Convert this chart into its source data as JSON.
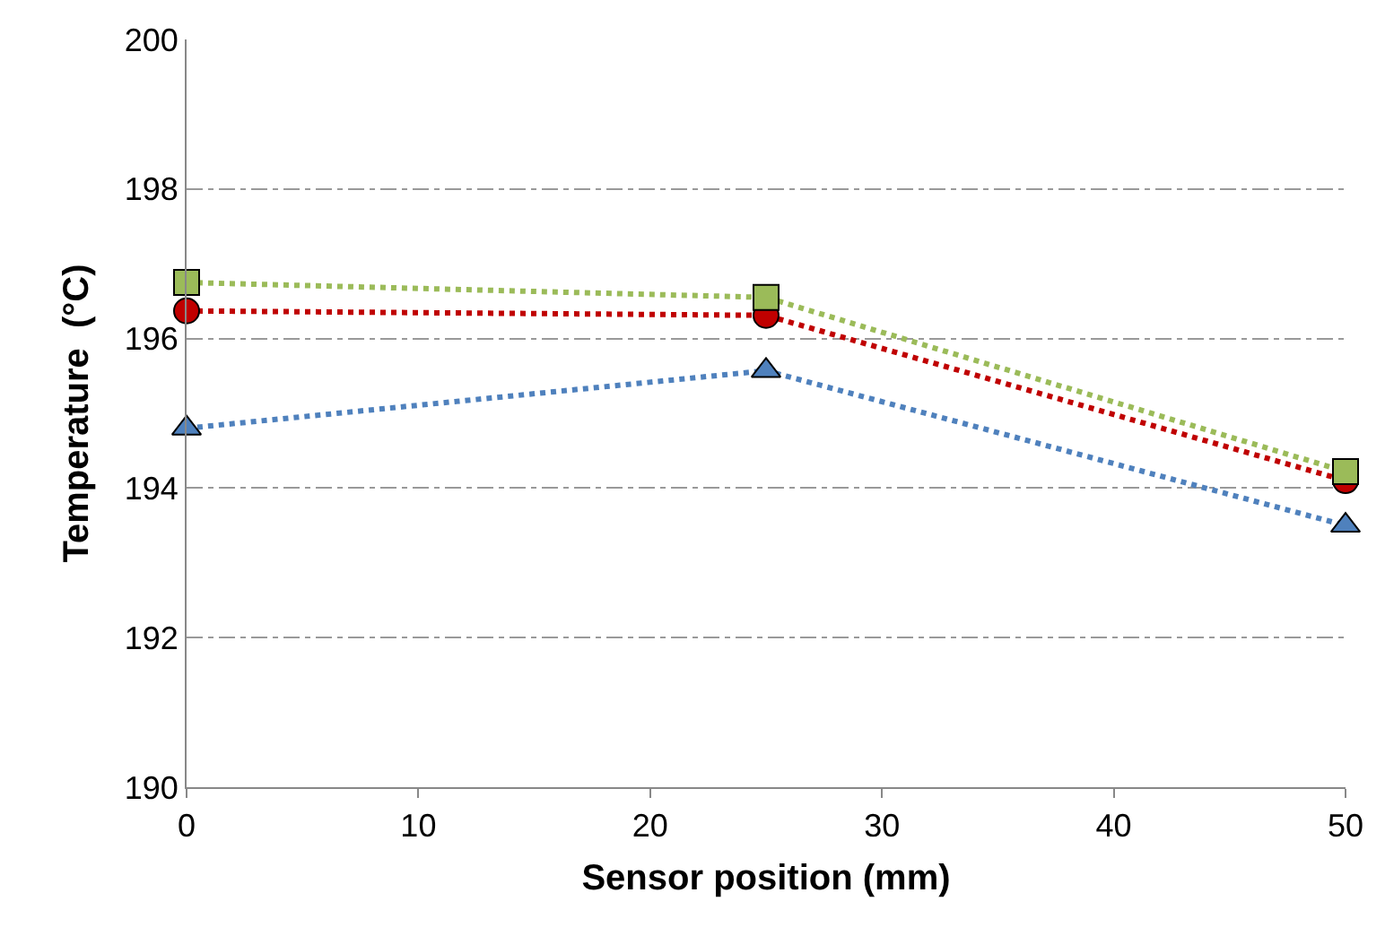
{
  "chart_data": {
    "type": "line",
    "xlabel": "Sensor position (mm)",
    "ylabel": "Temperature  (°C)",
    "x": [
      0,
      25,
      50
    ],
    "series": [
      {
        "color": "#9bbb59",
        "values": [
          196.75,
          196.55,
          194.22
        ],
        "marker": "square"
      },
      {
        "color": "#c00000",
        "values": [
          196.37,
          196.31,
          194.1
        ],
        "marker": "circle"
      },
      {
        "color": "#4f81bd",
        "values": [
          194.8,
          195.57,
          193.5
        ],
        "marker": "triangle"
      }
    ],
    "xlim": [
      0,
      50
    ],
    "xticks": [
      0,
      10,
      20,
      30,
      40,
      50
    ],
    "ylim": [
      190,
      200
    ],
    "yticks": [
      190,
      192,
      194,
      196,
      198,
      200
    ],
    "grid": "y",
    "line_style": "dotted"
  }
}
